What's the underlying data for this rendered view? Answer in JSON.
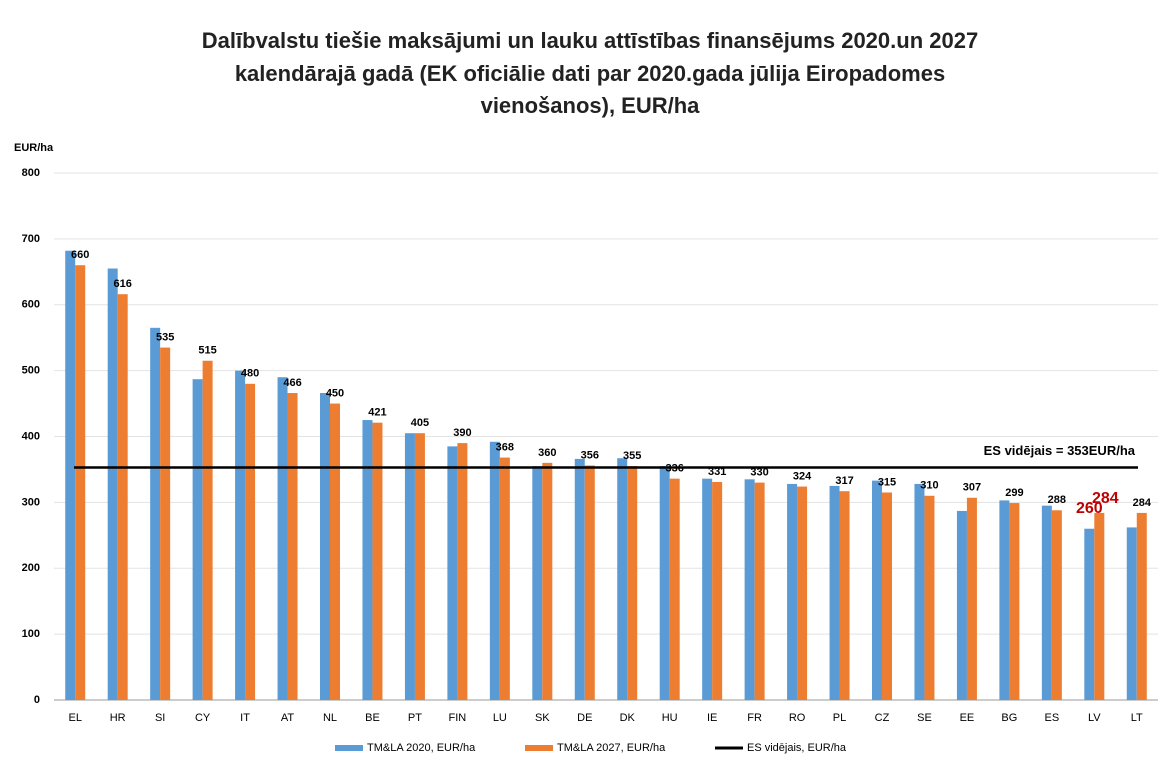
{
  "chart_data": {
    "type": "bar",
    "title": [
      "Dalībvalstu tiešie maksājumi un lauku attīstības finansējums 2020.un 2027",
      "kalendārajā gadā (EK oficiālie dati par 2020.gada jūlija Eiropadomes",
      "vienošanos), EUR/ha"
    ],
    "y_axis_label": "EUR/ha",
    "categories": [
      "EL",
      "HR",
      "SI",
      "CY",
      "IT",
      "AT",
      "NL",
      "BE",
      "PT",
      "FIN",
      "LU",
      "SK",
      "DE",
      "DK",
      "HU",
      "IE",
      "FR",
      "RO",
      "PL",
      "CZ",
      "SE",
      "EE",
      "BG",
      "ES",
      "LV",
      "LT"
    ],
    "series": [
      {
        "name": "TM&LA 2020, EUR/ha",
        "color": "#5b9bd5",
        "values": [
          682,
          655,
          565,
          487,
          500,
          490,
          466,
          425,
          405,
          385,
          392,
          355,
          366,
          367,
          355,
          336,
          335,
          328,
          325,
          333,
          328,
          287,
          303,
          295,
          260,
          262
        ]
      },
      {
        "name": "TM&LA 2027, EUR/ha",
        "color": "#ed7d31",
        "values": [
          660,
          616,
          535,
          515,
          480,
          466,
          450,
          421,
          405,
          390,
          368,
          360,
          356,
          355,
          336,
          331,
          330,
          324,
          317,
          315,
          310,
          307,
          299,
          288,
          284,
          284
        ],
        "data_labels": true
      }
    ],
    "highlight_category": "LV",
    "highlight_color": "#c00000",
    "reference_line": {
      "name": "ES vidējais, EUR/ha",
      "value": 353,
      "label": "ES vidējais = 353EUR/ha",
      "color": "#000000"
    },
    "ylim": [
      0,
      800
    ],
    "yticks": [
      0,
      100,
      200,
      300,
      400,
      500,
      600,
      700,
      800
    ],
    "grid": true,
    "legend": "bottom"
  }
}
